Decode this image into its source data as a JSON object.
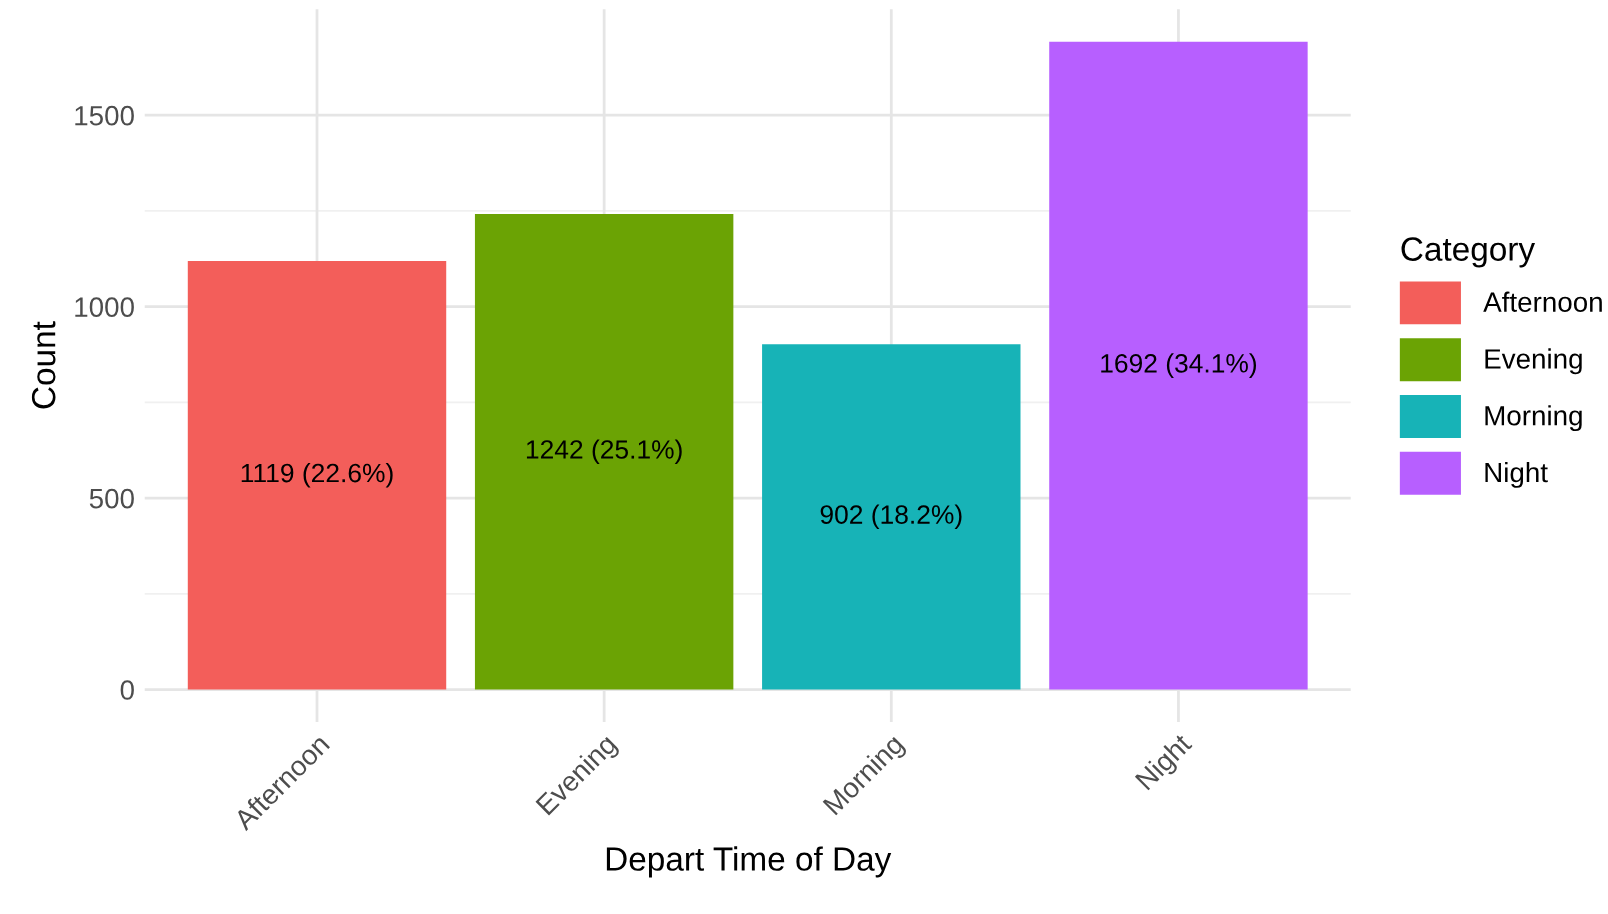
{
  "chart_data": {
    "type": "bar",
    "xlabel": "Depart Time of Day",
    "ylabel": "Count",
    "legend_title": "Category",
    "categories": [
      "Afternoon",
      "Evening",
      "Morning",
      "Night"
    ],
    "series": [
      {
        "name": "Afternoon",
        "color": "#f35e5a",
        "values": [
          1119,
          null,
          null,
          null
        ],
        "value_labels": [
          "1119 (22.6%)",
          null,
          null,
          null
        ]
      },
      {
        "name": "Evening",
        "color": "#6ba304",
        "values": [
          null,
          1242,
          null,
          null
        ],
        "value_labels": [
          null,
          "1242 (25.1%)",
          null,
          null
        ]
      },
      {
        "name": "Morning",
        "color": "#17b3b7",
        "values": [
          null,
          null,
          902,
          null
        ],
        "value_labels": [
          null,
          null,
          "902 (18.2%)",
          null
        ]
      },
      {
        "name": "Night",
        "color": "#b75fff",
        "values": [
          null,
          null,
          null,
          1692
        ],
        "value_labels": [
          null,
          null,
          null,
          "1692 (34.1%)"
        ]
      }
    ],
    "ylim": [
      -85,
      1777
    ],
    "yticks": [
      0,
      500,
      1000,
      1500
    ],
    "grid": true,
    "legend": "right"
  }
}
